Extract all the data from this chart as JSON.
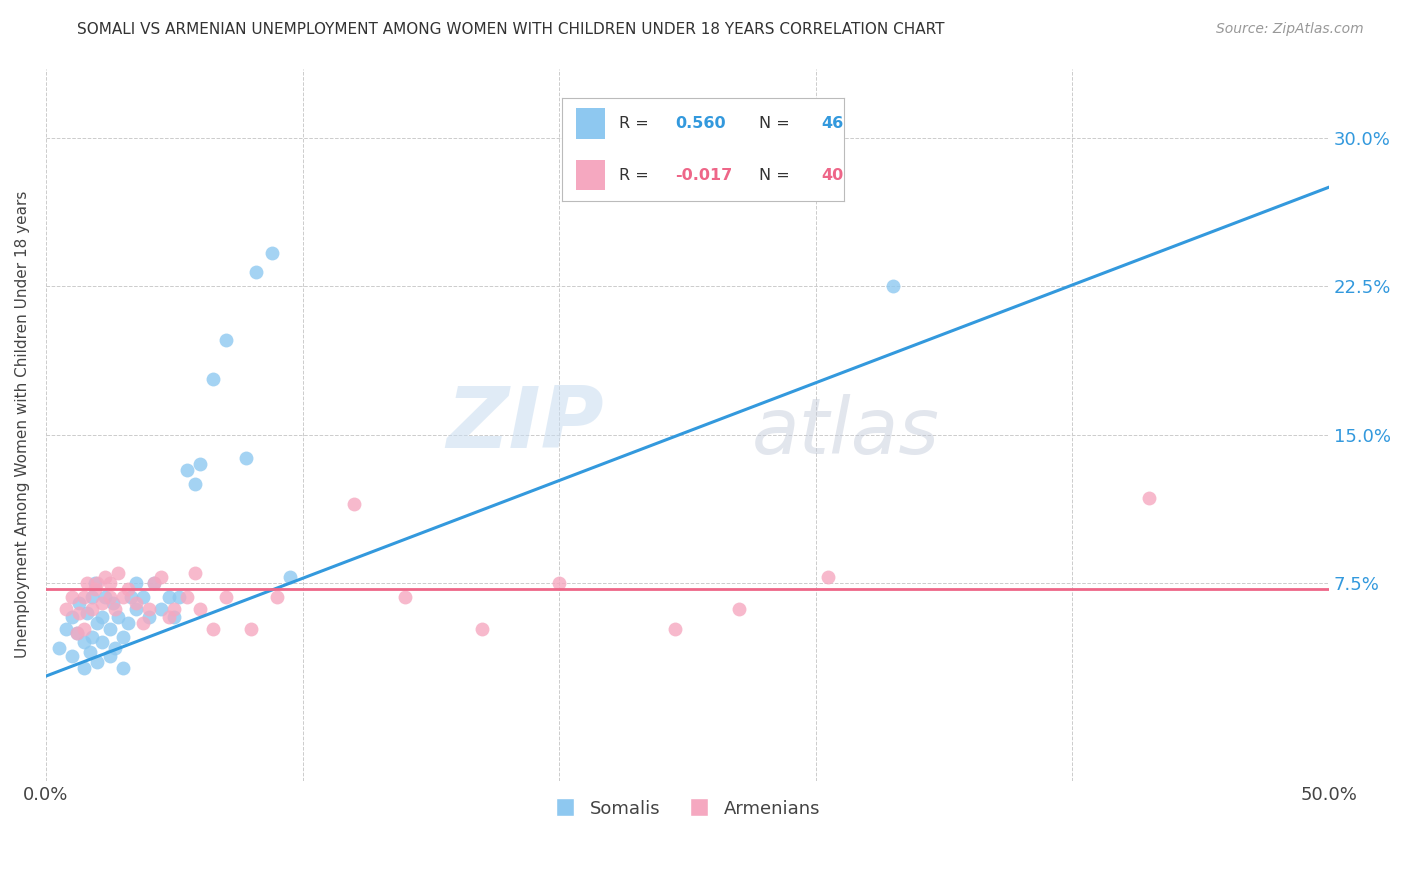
{
  "title": "SOMALI VS ARMENIAN UNEMPLOYMENT AMONG WOMEN WITH CHILDREN UNDER 18 YEARS CORRELATION CHART",
  "source": "Source: ZipAtlas.com",
  "ylabel": "Unemployment Among Women with Children Under 18 years",
  "xlim": [
    0.0,
    0.5
  ],
  "ylim": [
    -0.025,
    0.335
  ],
  "somali_R": 0.56,
  "somali_N": 46,
  "armenian_R": -0.017,
  "armenian_N": 40,
  "somali_color": "#8EC8F0",
  "armenian_color": "#F5A8C0",
  "somali_line_color": "#3399DD",
  "armenian_line_color": "#EE6688",
  "watermark_zip": "ZIP",
  "watermark_atlas": "atlas",
  "background_color": "#FFFFFF",
  "grid_color": "#CCCCCC",
  "somali_x": [
    0.005,
    0.008,
    0.01,
    0.01,
    0.012,
    0.013,
    0.015,
    0.015,
    0.016,
    0.017,
    0.018,
    0.018,
    0.019,
    0.02,
    0.02,
    0.022,
    0.022,
    0.023,
    0.025,
    0.025,
    0.026,
    0.027,
    0.028,
    0.03,
    0.03,
    0.032,
    0.033,
    0.035,
    0.035,
    0.038,
    0.04,
    0.042,
    0.045,
    0.048,
    0.05,
    0.052,
    0.055,
    0.058,
    0.06,
    0.065,
    0.07,
    0.078,
    0.082,
    0.088,
    0.095,
    0.33
  ],
  "somali_y": [
    0.042,
    0.052,
    0.038,
    0.058,
    0.05,
    0.065,
    0.032,
    0.045,
    0.06,
    0.04,
    0.048,
    0.068,
    0.075,
    0.035,
    0.055,
    0.045,
    0.058,
    0.068,
    0.038,
    0.052,
    0.065,
    0.042,
    0.058,
    0.032,
    0.048,
    0.055,
    0.068,
    0.062,
    0.075,
    0.068,
    0.058,
    0.075,
    0.062,
    0.068,
    0.058,
    0.068,
    0.132,
    0.125,
    0.135,
    0.178,
    0.198,
    0.138,
    0.232,
    0.242,
    0.078,
    0.225
  ],
  "armenian_x": [
    0.008,
    0.01,
    0.012,
    0.013,
    0.015,
    0.015,
    0.016,
    0.018,
    0.019,
    0.02,
    0.022,
    0.023,
    0.025,
    0.025,
    0.027,
    0.028,
    0.03,
    0.032,
    0.035,
    0.038,
    0.04,
    0.042,
    0.045,
    0.048,
    0.05,
    0.055,
    0.058,
    0.06,
    0.065,
    0.07,
    0.08,
    0.09,
    0.12,
    0.14,
    0.17,
    0.2,
    0.245,
    0.27,
    0.305,
    0.43
  ],
  "armenian_y": [
    0.062,
    0.068,
    0.05,
    0.06,
    0.052,
    0.068,
    0.075,
    0.062,
    0.072,
    0.075,
    0.065,
    0.078,
    0.068,
    0.075,
    0.062,
    0.08,
    0.068,
    0.072,
    0.065,
    0.055,
    0.062,
    0.075,
    0.078,
    0.058,
    0.062,
    0.068,
    0.08,
    0.062,
    0.052,
    0.068,
    0.052,
    0.068,
    0.115,
    0.068,
    0.052,
    0.075,
    0.052,
    0.062,
    0.078,
    0.118
  ],
  "somali_line_x": [
    0.0,
    0.5
  ],
  "somali_line_y": [
    0.028,
    0.275
  ],
  "armenian_line_x": [
    0.0,
    0.5
  ],
  "armenian_line_y": [
    0.072,
    0.072
  ]
}
